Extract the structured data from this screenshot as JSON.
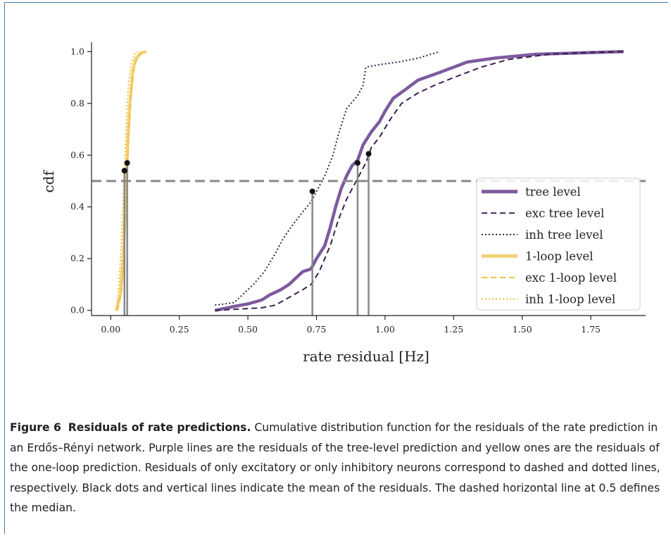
{
  "figure": {
    "label": "Figure 6",
    "title": "Residuals of rate predictions.",
    "caption": " Cumulative distribution function for the residuals of the rate prediction in an Erdős–Rényi network. Purple lines are the residuals of the tree-level prediction and yellow ones are the residuals of the one-loop prediction. Residuals of only excitatory or only inhibitory neurons correspond to dashed and dotted lines, respectively. Black dots and vertical lines indicate the mean of the residuals. The dashed horizontal line at 0.5 defines the median."
  },
  "chart_data": {
    "type": "line",
    "xlabel": "rate residual [Hz]",
    "ylabel": "cdf",
    "xlim": [
      -0.07,
      1.95
    ],
    "ylim": [
      -0.02,
      1.02
    ],
    "xticks": [
      "0.00",
      "0.25",
      "0.50",
      "0.75",
      "1.00",
      "1.25",
      "1.50",
      "1.75"
    ],
    "xtick_values": [
      0,
      0.25,
      0.5,
      0.75,
      1.0,
      1.25,
      1.5,
      1.75
    ],
    "yticks": [
      "0.0",
      "0.2",
      "0.4",
      "0.6",
      "0.8",
      "1.0"
    ],
    "ytick_values": [
      0,
      0.2,
      0.4,
      0.6,
      0.8,
      1.0
    ],
    "grid": false,
    "legend_position": "lower right",
    "median_line": 0.5,
    "colors": {
      "purple": "#7d5a9e",
      "dark_purple": "#3d1f4f",
      "yellow": "#f2d27a",
      "yellow_dash": "#f2c242",
      "mean_line": "#888888",
      "median_line": "#888888"
    },
    "series": [
      {
        "name": "tree level",
        "style": "solid-thick",
        "color": "purple",
        "points": [
          [
            0.38,
            0.0
          ],
          [
            0.45,
            0.015
          ],
          [
            0.5,
            0.025
          ],
          [
            0.55,
            0.04
          ],
          [
            0.58,
            0.06
          ],
          [
            0.62,
            0.08
          ],
          [
            0.65,
            0.1
          ],
          [
            0.68,
            0.13
          ],
          [
            0.7,
            0.15
          ],
          [
            0.73,
            0.16
          ],
          [
            0.75,
            0.2
          ],
          [
            0.78,
            0.25
          ],
          [
            0.8,
            0.32
          ],
          [
            0.82,
            0.4
          ],
          [
            0.84,
            0.47
          ],
          [
            0.86,
            0.52
          ],
          [
            0.88,
            0.56
          ],
          [
            0.9,
            0.58
          ],
          [
            0.92,
            0.64
          ],
          [
            0.95,
            0.69
          ],
          [
            0.98,
            0.73
          ],
          [
            1.0,
            0.77
          ],
          [
            1.03,
            0.82
          ],
          [
            1.07,
            0.85
          ],
          [
            1.12,
            0.89
          ],
          [
            1.2,
            0.92
          ],
          [
            1.3,
            0.96
          ],
          [
            1.4,
            0.975
          ],
          [
            1.55,
            0.99
          ],
          [
            1.7,
            0.995
          ],
          [
            1.87,
            1.0
          ]
        ]
      },
      {
        "name": "exc tree level",
        "style": "dashed",
        "color": "dark_purple",
        "points": [
          [
            0.38,
            0.0
          ],
          [
            0.55,
            0.01
          ],
          [
            0.6,
            0.02
          ],
          [
            0.65,
            0.05
          ],
          [
            0.7,
            0.08
          ],
          [
            0.73,
            0.1
          ],
          [
            0.76,
            0.15
          ],
          [
            0.8,
            0.25
          ],
          [
            0.83,
            0.35
          ],
          [
            0.86,
            0.43
          ],
          [
            0.9,
            0.51
          ],
          [
            0.93,
            0.57
          ],
          [
            0.95,
            0.63
          ],
          [
            0.98,
            0.67
          ],
          [
            1.02,
            0.74
          ],
          [
            1.06,
            0.8
          ],
          [
            1.12,
            0.84
          ],
          [
            1.18,
            0.87
          ],
          [
            1.25,
            0.9
          ],
          [
            1.35,
            0.94
          ],
          [
            1.45,
            0.97
          ],
          [
            1.6,
            0.99
          ],
          [
            1.75,
            0.997
          ],
          [
            1.87,
            1.0
          ]
        ]
      },
      {
        "name": "inh tree level",
        "style": "dotted",
        "color": "dark_purple",
        "points": [
          [
            0.38,
            0.02
          ],
          [
            0.45,
            0.03
          ],
          [
            0.48,
            0.06
          ],
          [
            0.52,
            0.1
          ],
          [
            0.56,
            0.15
          ],
          [
            0.6,
            0.22
          ],
          [
            0.63,
            0.28
          ],
          [
            0.67,
            0.34
          ],
          [
            0.7,
            0.38
          ],
          [
            0.73,
            0.42
          ],
          [
            0.75,
            0.46
          ],
          [
            0.78,
            0.52
          ],
          [
            0.81,
            0.6
          ],
          [
            0.83,
            0.68
          ],
          [
            0.86,
            0.78
          ],
          [
            0.9,
            0.83
          ],
          [
            0.92,
            0.87
          ],
          [
            0.93,
            0.94
          ],
          [
            0.98,
            0.95
          ],
          [
            1.05,
            0.96
          ],
          [
            1.12,
            0.975
          ],
          [
            1.2,
            1.0
          ]
        ]
      },
      {
        "name": "1-loop level",
        "style": "solid-thick",
        "color": "yellow",
        "points": [
          [
            0.02,
            0.0
          ],
          [
            0.035,
            0.06
          ],
          [
            0.045,
            0.2
          ],
          [
            0.055,
            0.45
          ],
          [
            0.062,
            0.65
          ],
          [
            0.07,
            0.8
          ],
          [
            0.08,
            0.92
          ],
          [
            0.09,
            0.97
          ],
          [
            0.11,
            0.995
          ],
          [
            0.13,
            1.0
          ]
        ]
      },
      {
        "name": "exc 1-loop level",
        "style": "dashed",
        "color": "yellow_dash",
        "points": [
          [
            0.025,
            0.0
          ],
          [
            0.04,
            0.08
          ],
          [
            0.05,
            0.25
          ],
          [
            0.058,
            0.48
          ],
          [
            0.065,
            0.68
          ],
          [
            0.073,
            0.83
          ],
          [
            0.083,
            0.93
          ],
          [
            0.095,
            0.97
          ],
          [
            0.11,
            0.993
          ],
          [
            0.13,
            1.0
          ]
        ]
      },
      {
        "name": "inh 1-loop level",
        "style": "dotted",
        "color": "yellow_dash",
        "points": [
          [
            0.02,
            0.0
          ],
          [
            0.03,
            0.1
          ],
          [
            0.04,
            0.3
          ],
          [
            0.05,
            0.55
          ],
          [
            0.058,
            0.75
          ],
          [
            0.065,
            0.88
          ],
          [
            0.075,
            0.96
          ],
          [
            0.09,
            0.995
          ],
          [
            0.1,
            1.0
          ]
        ]
      }
    ],
    "means": [
      {
        "x": 0.05,
        "y": 0.54
      },
      {
        "x": 0.06,
        "y": 0.57
      },
      {
        "x": 0.735,
        "y": 0.46
      },
      {
        "x": 0.9,
        "y": 0.57
      },
      {
        "x": 0.94,
        "y": 0.605
      }
    ]
  }
}
